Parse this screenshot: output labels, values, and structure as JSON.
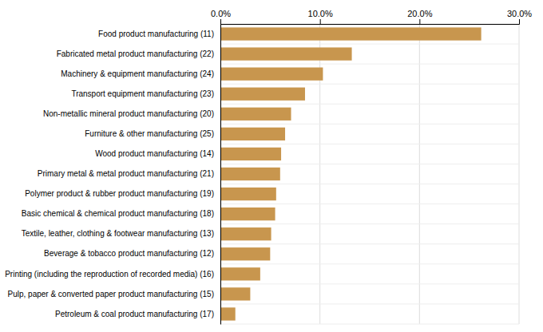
{
  "chart_data": {
    "type": "bar",
    "orientation": "horizontal",
    "categories": [
      "Food product manufacturing (11)",
      "Fabricated metal product manufacturing (22)",
      "Machinery & equipment manufacturing (24)",
      "Transport equipment manufacturing (23)",
      "Non-metallic mineral product manufacturing (20)",
      "Furniture & other manufacturing (25)",
      "Wood product manufacturing (14)",
      "Primary metal & metal product manufacturing (21)",
      "Polymer product & rubber product manufacturing (19)",
      "Basic chemical & chemical product manufacturing (18)",
      "Textile, leather, clothing & footwear manufacturing (13)",
      "Beverage & tobacco product manufacturing (12)",
      "Printing (including the reproduction of recorded media) (16)",
      "Pulp, paper & converted paper product manufacturing (15)",
      "Petroleum & coal product manufacturing (17)"
    ],
    "values": [
      0.262,
      0.132,
      0.103,
      0.085,
      0.071,
      0.065,
      0.061,
      0.06,
      0.056,
      0.055,
      0.051,
      0.05,
      0.04,
      0.03,
      0.015
    ],
    "color": "#C8964E",
    "xlim": [
      0,
      0.3
    ],
    "xticks": [
      {
        "value": 0.0,
        "label": "0.0%"
      },
      {
        "value": 0.1,
        "label": "10.0%"
      },
      {
        "value": 0.2,
        "label": "20.0%"
      },
      {
        "value": 0.3,
        "label": "30.0%"
      }
    ],
    "grid": true
  }
}
